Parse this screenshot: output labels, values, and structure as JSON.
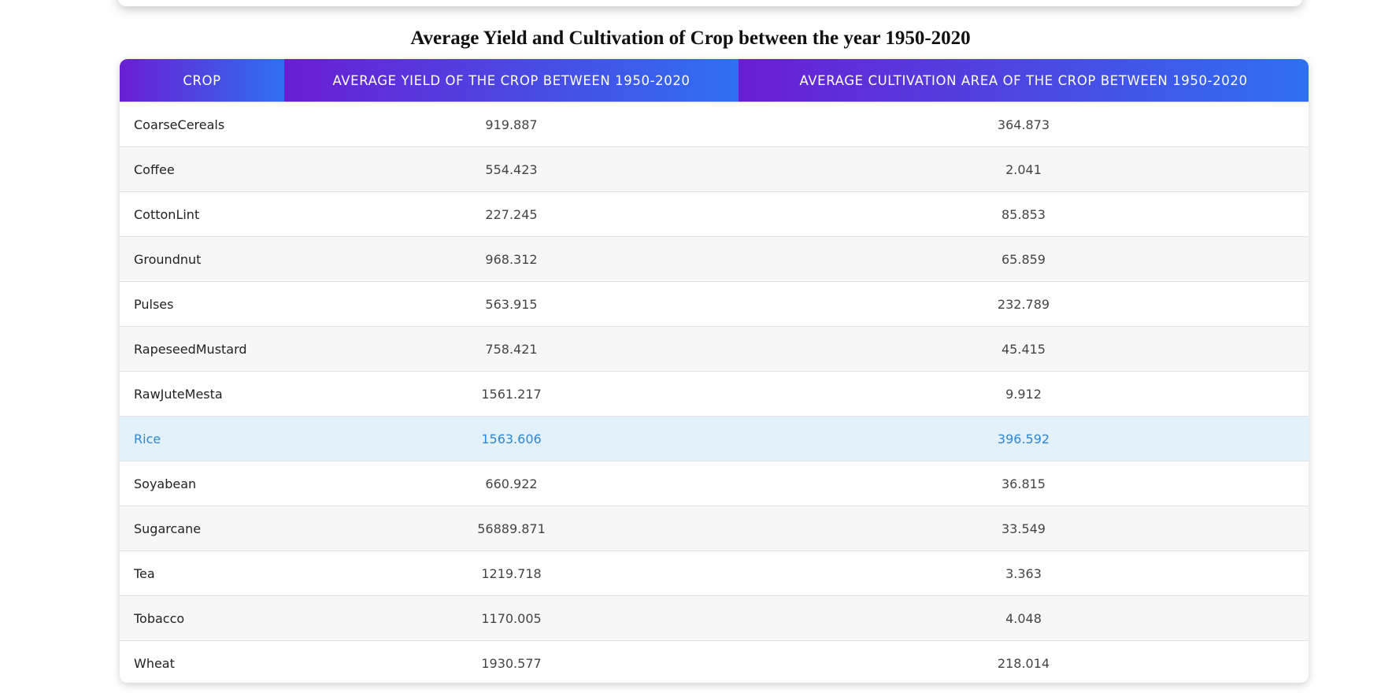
{
  "page": {
    "title": "Average Yield and Cultivation of Crop between the year 1950-2020"
  },
  "colors": {
    "header_gradient_start": "#6a1ed3",
    "header_gradient_end": "#2f6ff3",
    "highlight_row_bg": "#e3f1fb",
    "highlight_row_text": "#2e86d8"
  },
  "table": {
    "headers": [
      "CROP",
      "AVERAGE YIELD OF THE CROP BETWEEN 1950-2020",
      "AVERAGE CULTIVATION AREA OF THE CROP BETWEEN 1950-2020"
    ],
    "highlighted_row": "Rice",
    "rows": [
      {
        "crop": "CoarseCereals",
        "yield": "919.887",
        "area": "364.873"
      },
      {
        "crop": "Coffee",
        "yield": "554.423",
        "area": "2.041"
      },
      {
        "crop": "CottonLint",
        "yield": "227.245",
        "area": "85.853"
      },
      {
        "crop": "Groundnut",
        "yield": "968.312",
        "area": "65.859"
      },
      {
        "crop": "Pulses",
        "yield": "563.915",
        "area": "232.789"
      },
      {
        "crop": "RapeseedMustard",
        "yield": "758.421",
        "area": "45.415"
      },
      {
        "crop": "RawJuteMesta",
        "yield": "1561.217",
        "area": "9.912"
      },
      {
        "crop": "Rice",
        "yield": "1563.606",
        "area": "396.592"
      },
      {
        "crop": "Soyabean",
        "yield": "660.922",
        "area": "36.815"
      },
      {
        "crop": "Sugarcane",
        "yield": "56889.871",
        "area": "33.549"
      },
      {
        "crop": "Tea",
        "yield": "1219.718",
        "area": "3.363"
      },
      {
        "crop": "Tobacco",
        "yield": "1170.005",
        "area": "4.048"
      },
      {
        "crop": "Wheat",
        "yield": "1930.577",
        "area": "218.014"
      }
    ]
  }
}
